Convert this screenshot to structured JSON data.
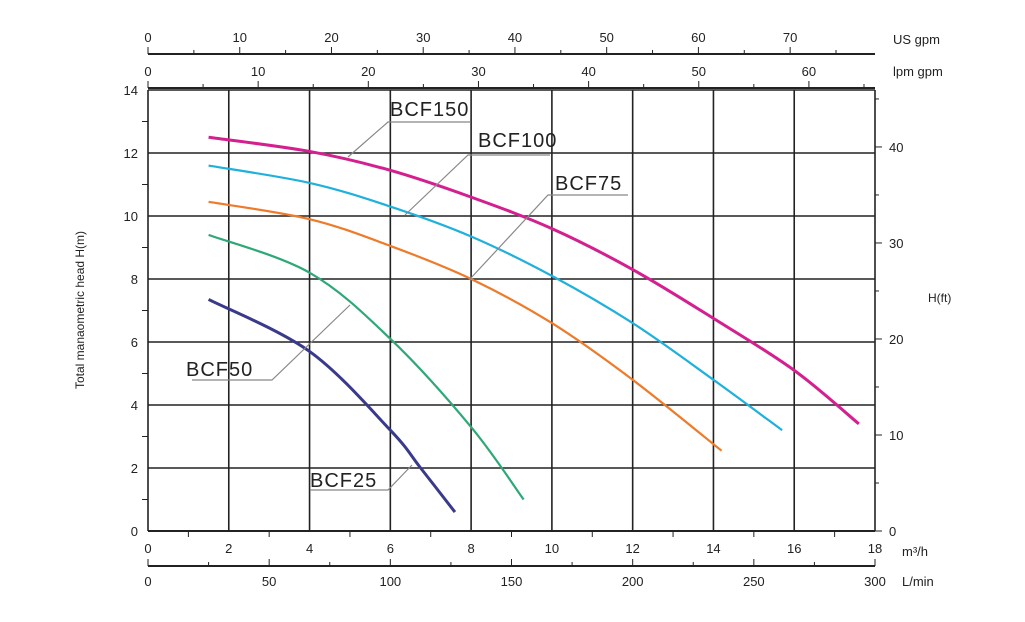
{
  "chart_data": {
    "type": "line",
    "title": "",
    "xlabel": "m³/h",
    "ylabel": "Total manaometric head H(m)",
    "y2label": "H(ft)",
    "xlim": [
      0,
      18
    ],
    "ylim": [
      0,
      14
    ],
    "x_ticks": [
      0,
      2,
      4,
      6,
      8,
      10,
      12,
      14,
      16,
      18
    ],
    "y_ticks": [
      0,
      2,
      4,
      6,
      8,
      10,
      12,
      14
    ],
    "y2_ticks": [
      0,
      10,
      20,
      30,
      40
    ],
    "grid": true,
    "secondary_axes": {
      "us_gpm": {
        "label": "US  gpm",
        "ticks": [
          0,
          10,
          20,
          30,
          40,
          50,
          60,
          70
        ],
        "max": 79.25
      },
      "imp_gpm": {
        "label": "lpm  gpm",
        "ticks": [
          0,
          10,
          20,
          30,
          40,
          50,
          60
        ],
        "max": 66
      },
      "l_min": {
        "label": "L/min",
        "ticks": [
          0,
          50,
          100,
          150,
          200,
          250,
          300
        ],
        "max": 300
      }
    },
    "series": [
      {
        "name": "BCF150",
        "color": "#d4208f",
        "x": [
          1.5,
          4,
          6,
          8,
          10,
          12,
          14,
          16,
          17.6
        ],
        "y": [
          12.5,
          12.05,
          11.45,
          10.6,
          9.6,
          8.3,
          6.75,
          5.1,
          3.4
        ]
      },
      {
        "name": "BCF100",
        "color": "#1fb0dc",
        "x": [
          1.5,
          4,
          6,
          8,
          10,
          12,
          14,
          15.7
        ],
        "y": [
          11.6,
          11.05,
          10.3,
          9.35,
          8.1,
          6.6,
          4.8,
          3.2
        ]
      },
      {
        "name": "BCF75",
        "color": "#ee7a2a",
        "x": [
          1.5,
          4,
          6,
          8,
          10,
          12,
          14.2
        ],
        "y": [
          10.45,
          9.9,
          9.05,
          8.0,
          6.6,
          4.8,
          2.55
        ]
      },
      {
        "name": "BCF50",
        "color": "#2ea877",
        "x": [
          1.5,
          4,
          6,
          8,
          9.3
        ],
        "y": [
          9.4,
          8.2,
          6.1,
          3.3,
          1.0
        ]
      },
      {
        "name": "BCF25",
        "color": "#3a3a8c",
        "x": [
          1.5,
          4,
          6,
          6.75,
          7.6
        ],
        "y": [
          7.35,
          5.7,
          3.2,
          2.0,
          0.6
        ]
      }
    ]
  }
}
